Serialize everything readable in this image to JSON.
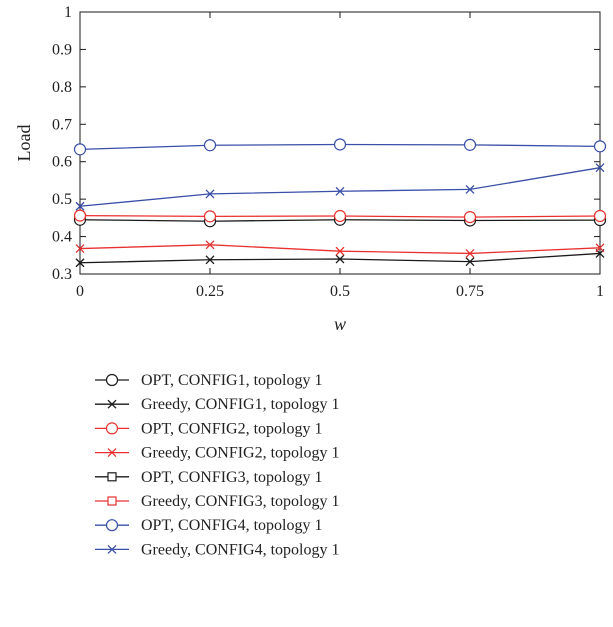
{
  "chart_data": {
    "type": "line",
    "xlabel": "w",
    "ylabel": "Load",
    "xlim": [
      0,
      1
    ],
    "ylim": [
      0.3,
      1
    ],
    "x": [
      0,
      0.25,
      0.5,
      0.75,
      1
    ],
    "x_tick_labels": [
      "0",
      "0.25",
      "0.5",
      "0.75",
      "1"
    ],
    "y_ticks": [
      0.3,
      0.4,
      0.5,
      0.6,
      0.7,
      0.8,
      0.9,
      1
    ],
    "y_tick_labels": [
      "0.3",
      "0.4",
      "0.5",
      "0.6",
      "0.7",
      "0.8",
      "0.9",
      "1"
    ],
    "grid": false,
    "legend_placement": "below",
    "series": [
      {
        "name": "OPT, CONFIG1, topology 1",
        "color": "#1a1a1a",
        "marker": "circle",
        "values": [
          0.445,
          0.441,
          0.445,
          0.443,
          0.444
        ]
      },
      {
        "name": "Greedy, CONFIG1, topology 1",
        "color": "#1a1a1a",
        "marker": "x",
        "values": [
          0.33,
          0.338,
          0.34,
          0.333,
          0.355
        ]
      },
      {
        "name": "OPT, CONFIG2, topology 1",
        "color": "#e8312f",
        "marker": "circle",
        "values": [
          0.456,
          0.454,
          0.455,
          0.452,
          0.455
        ]
      },
      {
        "name": "Greedy, CONFIG2, topology 1",
        "color": "#e8312f",
        "marker": "x",
        "values": [
          0.368,
          0.378,
          0.361,
          0.355,
          0.37
        ]
      },
      {
        "name": "OPT, CONFIG3, topology 1",
        "color": "#1a1a1a",
        "marker": "square",
        "values": [
          null,
          null,
          null,
          null,
          null
        ]
      },
      {
        "name": "Greedy, CONFIG3, topology 1",
        "color": "#e8312f",
        "marker": "square",
        "values": [
          null,
          null,
          null,
          null,
          null
        ]
      },
      {
        "name": "OPT, CONFIG4, topology 1",
        "color": "#3a4fa8",
        "marker": "circle",
        "values": [
          0.633,
          0.644,
          0.646,
          0.645,
          0.641
        ]
      },
      {
        "name": "Greedy, CONFIG4, topology 1",
        "color": "#3a4fa8",
        "marker": "x",
        "values": [
          0.481,
          0.514,
          0.521,
          0.526,
          0.584
        ]
      }
    ]
  }
}
